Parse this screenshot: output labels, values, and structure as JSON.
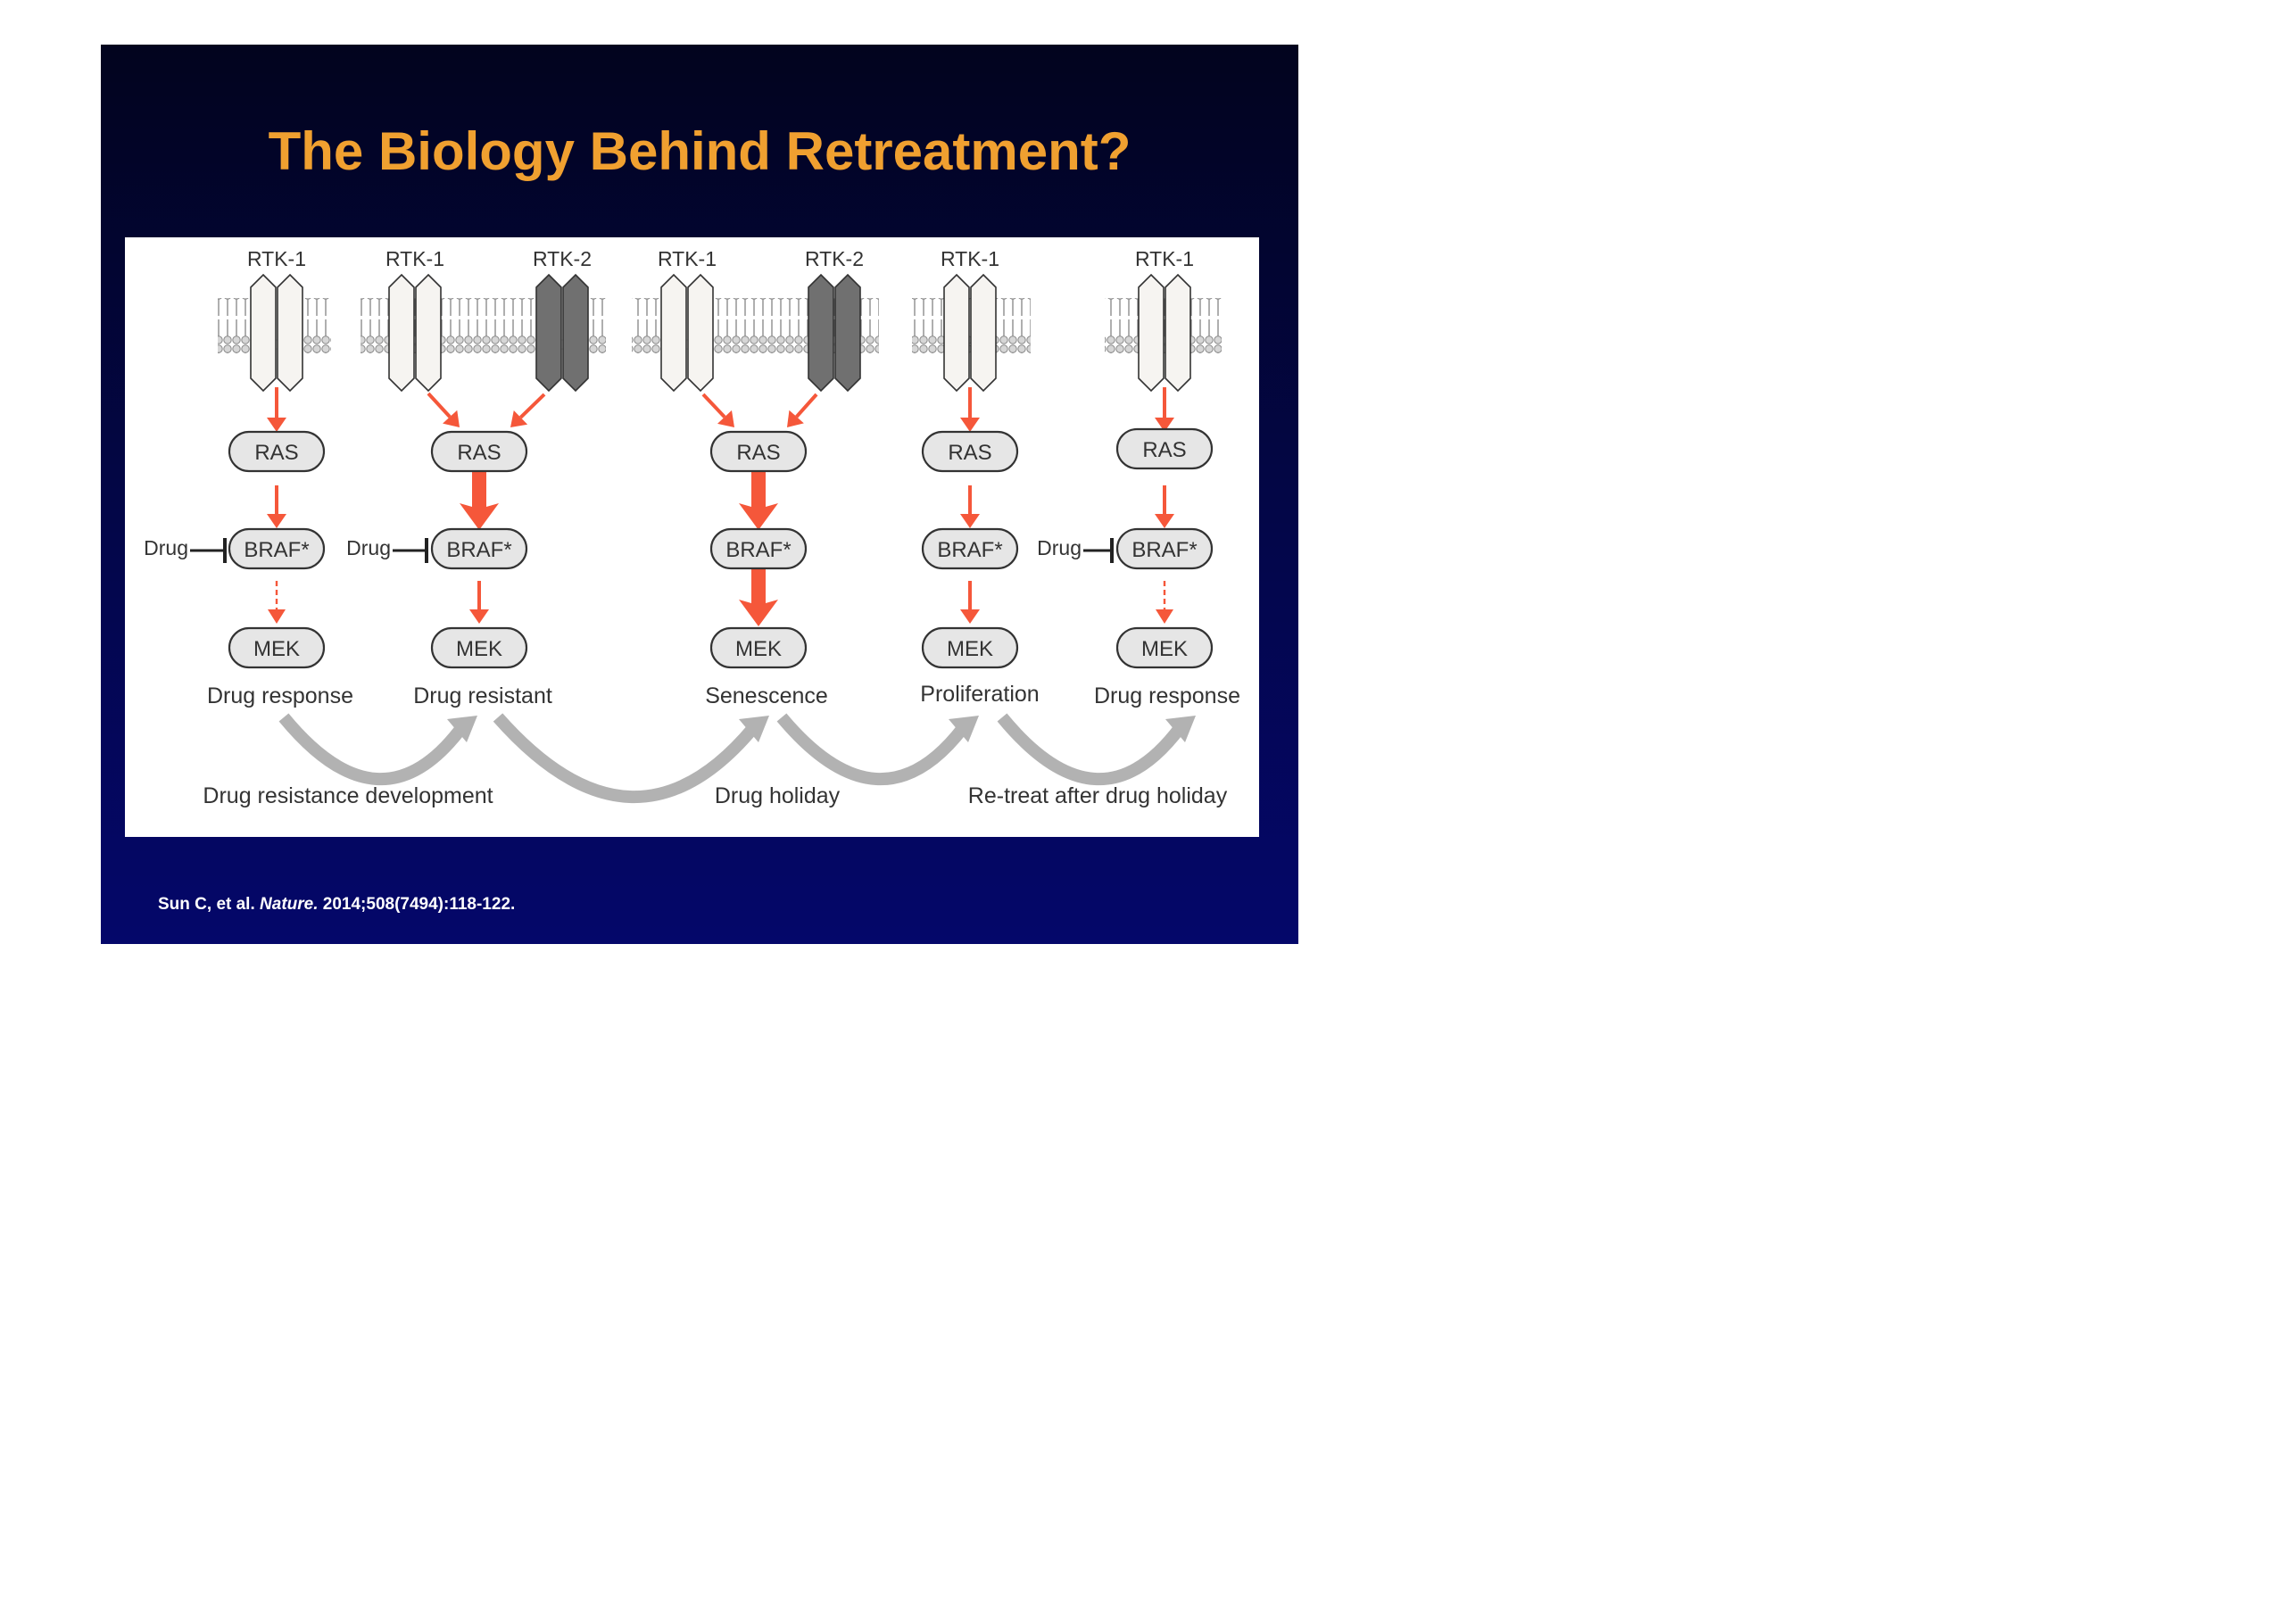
{
  "slide": {
    "title": "The Biology Behind Retreatment?",
    "citation": {
      "authors": "Sun C, et al.",
      "journal": "Nature.",
      "details": "2014;508(7494):118-122."
    }
  },
  "diagram": {
    "receptor_labels": [
      "RTK-1",
      "RTK-1",
      "RTK-2",
      "RTK-1",
      "RTK-2",
      "RTK-1",
      "RTK-1"
    ],
    "ras_label": "RAS",
    "braf_label": "BRAF*",
    "mek_label": "MEK",
    "drug_label": "Drug",
    "states": [
      "Drug response",
      "Drug resistant",
      "Senescence",
      "Proliferation",
      "Drug response"
    ],
    "transitions": [
      "Drug resistance development",
      "Drug holiday",
      "Re-treat after drug holiday"
    ],
    "colors": {
      "arrow": "#f5573a",
      "node_fill": "#e6e6e6",
      "rtk1_fill": "#f6f4f1",
      "rtk2_fill": "#707070",
      "inactive_text": "#aaaaaa",
      "transition_arrow": "#b2b2b2"
    }
  }
}
